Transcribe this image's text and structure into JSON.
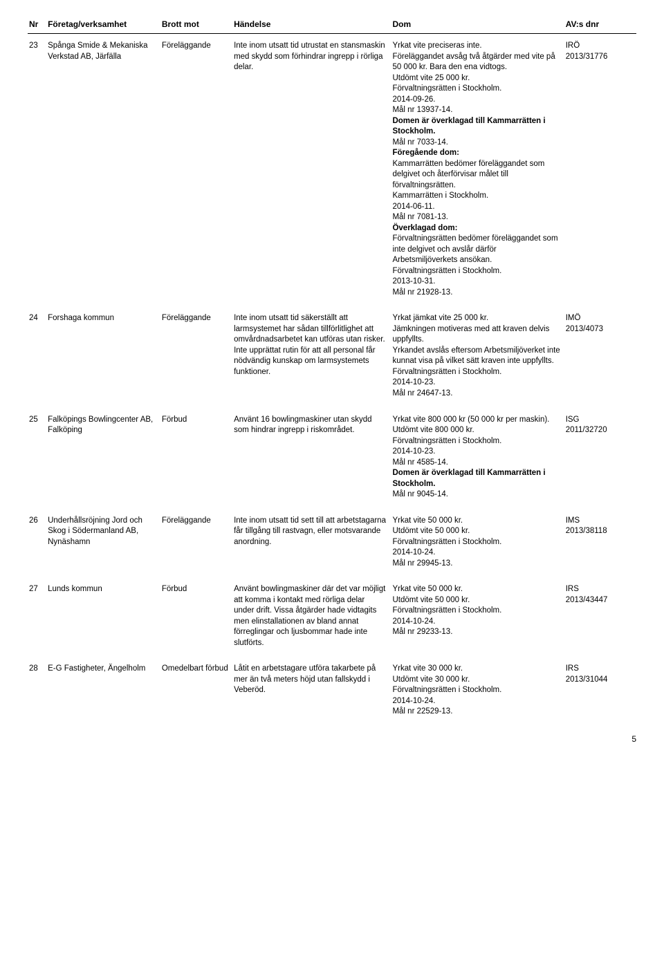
{
  "headers": {
    "nr": "Nr",
    "company": "Företag/verksamhet",
    "brott": "Brott mot",
    "handelse": "Händelse",
    "dom": "Dom",
    "dnr": "AV:s dnr"
  },
  "rows": [
    {
      "nr": "23",
      "company": "Spånga Smide & Mekaniska Verkstad AB, Järfälla",
      "brott": "Föreläggande",
      "handelse": "Inte inom utsatt tid utrustat en stansmaskin med skydd som förhindrar ingrepp i rörliga delar.",
      "dom_parts": [
        {
          "t": "Yrkat vite preciseras inte.",
          "b": false
        },
        {
          "t": "Föreläggandet avsåg två åtgärder med vite på 50 000 kr. Bara den ena vidtogs.",
          "b": false
        },
        {
          "t": "Utdömt vite 25 000 kr.",
          "b": false
        },
        {
          "t": "Förvaltningsrätten i Stockholm.",
          "b": false
        },
        {
          "t": "2014-09-26.",
          "b": false
        },
        {
          "t": "Mål nr 13937-14.",
          "b": false
        },
        {
          "t": "Domen är överklagad till Kammarrätten i Stockholm.",
          "b": true
        },
        {
          "t": "Mål nr 7033-14.",
          "b": false
        },
        {
          "t": "Föregående dom:",
          "b": true
        },
        {
          "t": "Kammarrätten bedömer föreläggandet som delgivet och återförvisar målet till förvaltningsrätten.",
          "b": false
        },
        {
          "t": "Kammarrätten i Stockholm.",
          "b": false
        },
        {
          "t": "2014-06-11.",
          "b": false
        },
        {
          "t": "Mål nr 7081-13.",
          "b": false
        },
        {
          "t": "Överklagad dom:",
          "b": true
        },
        {
          "t": "Förvaltningsrätten bedömer föreläggandet som inte delgivet och avslår därför Arbetsmiljöverkets ansökan.",
          "b": false
        },
        {
          "t": "Förvaltningsrätten i Stockholm.",
          "b": false
        },
        {
          "t": "2013-10-31.",
          "b": false
        },
        {
          "t": "Mål nr 21928-13.",
          "b": false
        }
      ],
      "dnr1": "IRÖ",
      "dnr2": "2013/31776"
    },
    {
      "nr": "24",
      "company": "Forshaga kommun",
      "brott": "Föreläggande",
      "handelse": "Inte inom utsatt tid säkerställt att larmsystemet har sådan tillförlitlighet att omvårdnadsarbetet kan utföras utan risker. Inte upprättat rutin för att all personal får nödvändig kunskap om larmsystemets funktioner.",
      "dom_parts": [
        {
          "t": "Yrkat jämkat vite 25 000 kr.",
          "b": false
        },
        {
          "t": "Jämkningen motiveras med att kraven delvis uppfyllts.",
          "b": false
        },
        {
          "t": "Yrkandet avslås eftersom Arbetsmiljöverket inte kunnat visa på vilket sätt kraven inte uppfyllts.",
          "b": false
        },
        {
          "t": "Förvaltningsrätten i Stockholm.",
          "b": false
        },
        {
          "t": "2014-10-23.",
          "b": false
        },
        {
          "t": "Mål nr 24647-13.",
          "b": false
        }
      ],
      "dnr1": "IMÖ",
      "dnr2": "2013/4073"
    },
    {
      "nr": "25",
      "company": "Falköpings Bowlingcenter AB, Falköping",
      "brott": "Förbud",
      "handelse": "Använt 16 bowlingmaskiner utan skydd som hindrar ingrepp i riskområdet.",
      "dom_parts": [
        {
          "t": "Yrkat vite 800 000 kr (50 000 kr per maskin).",
          "b": false
        },
        {
          "t": "Utdömt vite 800 000 kr.",
          "b": false
        },
        {
          "t": "Förvaltningsrätten i Stockholm.",
          "b": false
        },
        {
          "t": "2014-10-23.",
          "b": false
        },
        {
          "t": "Mål nr 4585-14.",
          "b": false
        },
        {
          "t": "Domen är överklagad till Kammarrätten i Stockholm.",
          "b": true
        },
        {
          "t": "Mål nr 9045-14.",
          "b": false
        }
      ],
      "dnr1": "ISG",
      "dnr2": "2011/32720"
    },
    {
      "nr": "26",
      "company": "Underhållsröjning Jord och Skog i Södermanland AB, Nynäshamn",
      "brott": "Föreläggande",
      "handelse": "Inte inom utsatt tid sett till att arbetstagarna får tillgång till rastvagn, eller motsvarande anordning.",
      "dom_parts": [
        {
          "t": "Yrkat vite 50 000 kr.",
          "b": false
        },
        {
          "t": "Utdömt vite 50 000 kr.",
          "b": false
        },
        {
          "t": "Förvaltningsrätten i Stockholm.",
          "b": false
        },
        {
          "t": "2014-10-24.",
          "b": false
        },
        {
          "t": "Mål nr 29945-13.",
          "b": false
        }
      ],
      "dnr1": "IMS",
      "dnr2": "2013/38118"
    },
    {
      "nr": "27",
      "company": "Lunds kommun",
      "brott": "Förbud",
      "handelse": "Använt bowlingmaskiner där det var möjligt att komma i kontakt med rörliga delar under drift. Vissa åtgärder hade vidtagits men elinstallationen av bland annat förreglingar och ljusbommar hade inte slutförts.",
      "dom_parts": [
        {
          "t": "Yrkat vite 50 000 kr.",
          "b": false
        },
        {
          "t": "Utdömt vite 50 000 kr.",
          "b": false
        },
        {
          "t": "Förvaltningsrätten i Stockholm.",
          "b": false
        },
        {
          "t": "2014-10-24.",
          "b": false
        },
        {
          "t": "Mål nr 29233-13.",
          "b": false
        }
      ],
      "dnr1": "IRS",
      "dnr2": "2013/43447"
    },
    {
      "nr": "28",
      "company": "E-G Fastigheter, Ängelholm",
      "brott": "Omedelbart förbud",
      "handelse": "Låtit en arbetstagare utföra takarbete på mer än två meters höjd utan fallskydd i Veberöd.",
      "dom_parts": [
        {
          "t": "Yrkat vite 30 000 kr.",
          "b": false
        },
        {
          "t": "Utdömt vite 30 000 kr.",
          "b": false
        },
        {
          "t": "Förvaltningsrätten i Stockholm.",
          "b": false
        },
        {
          "t": "2014-10-24.",
          "b": false
        },
        {
          "t": "Mål nr 22529-13.",
          "b": false
        }
      ],
      "dnr1": "IRS",
      "dnr2": "2013/31044"
    }
  ],
  "page_number": "5"
}
